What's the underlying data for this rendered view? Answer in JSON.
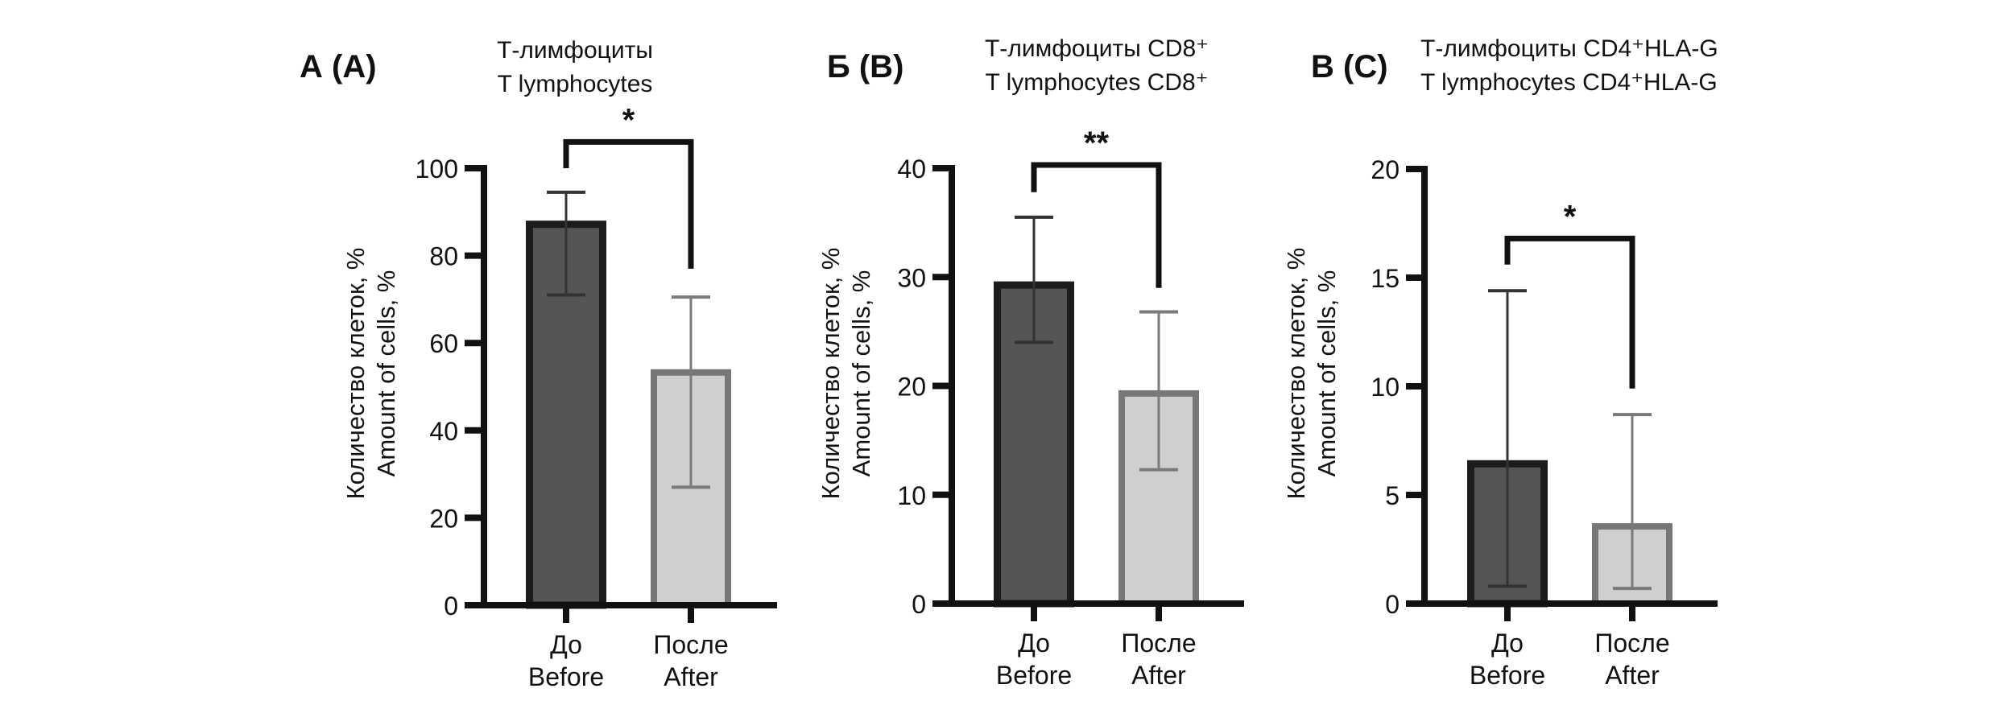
{
  "figure": {
    "colors": {
      "before_fill": "#555555",
      "before_border": "#1c1c1c",
      "before_error": "#333333",
      "after_fill": "#cfcfcf",
      "after_border": "#777777",
      "after_error": "#7a7a7a",
      "axis": "#111111"
    }
  },
  "chart_data": [
    {
      "type": "bar",
      "panel_label": "А (A)",
      "title_ru": "Т-лимфоциты",
      "title_en": "T lymphocytes",
      "ylabel_ru": "Количество клеток, %",
      "ylabel_en": "Amount of cells, %",
      "xlabel": "",
      "ylim": [
        0,
        100
      ],
      "yticks": [
        0,
        20,
        40,
        60,
        80,
        100
      ],
      "ytick_labels": [
        "0",
        "20",
        "40",
        "60",
        "80",
        "100"
      ],
      "categories": [
        {
          "ru": "До",
          "en": "Before"
        },
        {
          "ru": "После",
          "en": "After"
        }
      ],
      "values": [
        88,
        54
      ],
      "error_low": [
        71,
        27
      ],
      "error_high": [
        94.5,
        70.5
      ],
      "significance": {
        "label": "*",
        "bracket_top": 106,
        "left_end": 100,
        "right_end": 77
      },
      "grid": false
    },
    {
      "type": "bar",
      "panel_label": "Б (B)",
      "title_ru": "Т-лимфоциты CD8⁺",
      "title_en": "T lymphocytes CD8⁺",
      "ylabel_ru": "Количество клеток, %",
      "ylabel_en": "Amount of cells, %",
      "xlabel": "",
      "ylim": [
        0,
        40
      ],
      "yticks": [
        0,
        10,
        20,
        30,
        40
      ],
      "ytick_labels": [
        "0",
        "10",
        "20",
        "30",
        "40"
      ],
      "categories": [
        {
          "ru": "До",
          "en": "Before"
        },
        {
          "ru": "После",
          "en": "After"
        }
      ],
      "values": [
        29.6,
        19.6
      ],
      "error_low": [
        24,
        12.3
      ],
      "error_high": [
        35.5,
        26.8
      ],
      "significance": {
        "label": "**",
        "bracket_top": 40.3,
        "left_end": 37.8,
        "right_end": 29
      },
      "grid": false
    },
    {
      "type": "bar",
      "panel_label": "В (C)",
      "title_ru": "Т-лимфоциты CD4⁺HLA-G",
      "title_en": "T lymphocytes CD4⁺HLA-G",
      "ylabel_ru": "Количество клеток, %",
      "ylabel_en": "Amount of cells, %",
      "xlabel": "",
      "ylim": [
        0,
        20
      ],
      "yticks": [
        0,
        5,
        10,
        15,
        20
      ],
      "ytick_labels": [
        "0",
        "5",
        "10",
        "15",
        "20"
      ],
      "categories": [
        {
          "ru": "До",
          "en": "Before"
        },
        {
          "ru": "После",
          "en": "After"
        }
      ],
      "values": [
        6.6,
        3.7
      ],
      "error_low": [
        0.8,
        0.7
      ],
      "error_high": [
        14.4,
        8.7
      ],
      "significance": {
        "label": "*",
        "bracket_top": 16.8,
        "left_end": 15.6,
        "right_end": 9.9
      },
      "grid": false
    }
  ]
}
